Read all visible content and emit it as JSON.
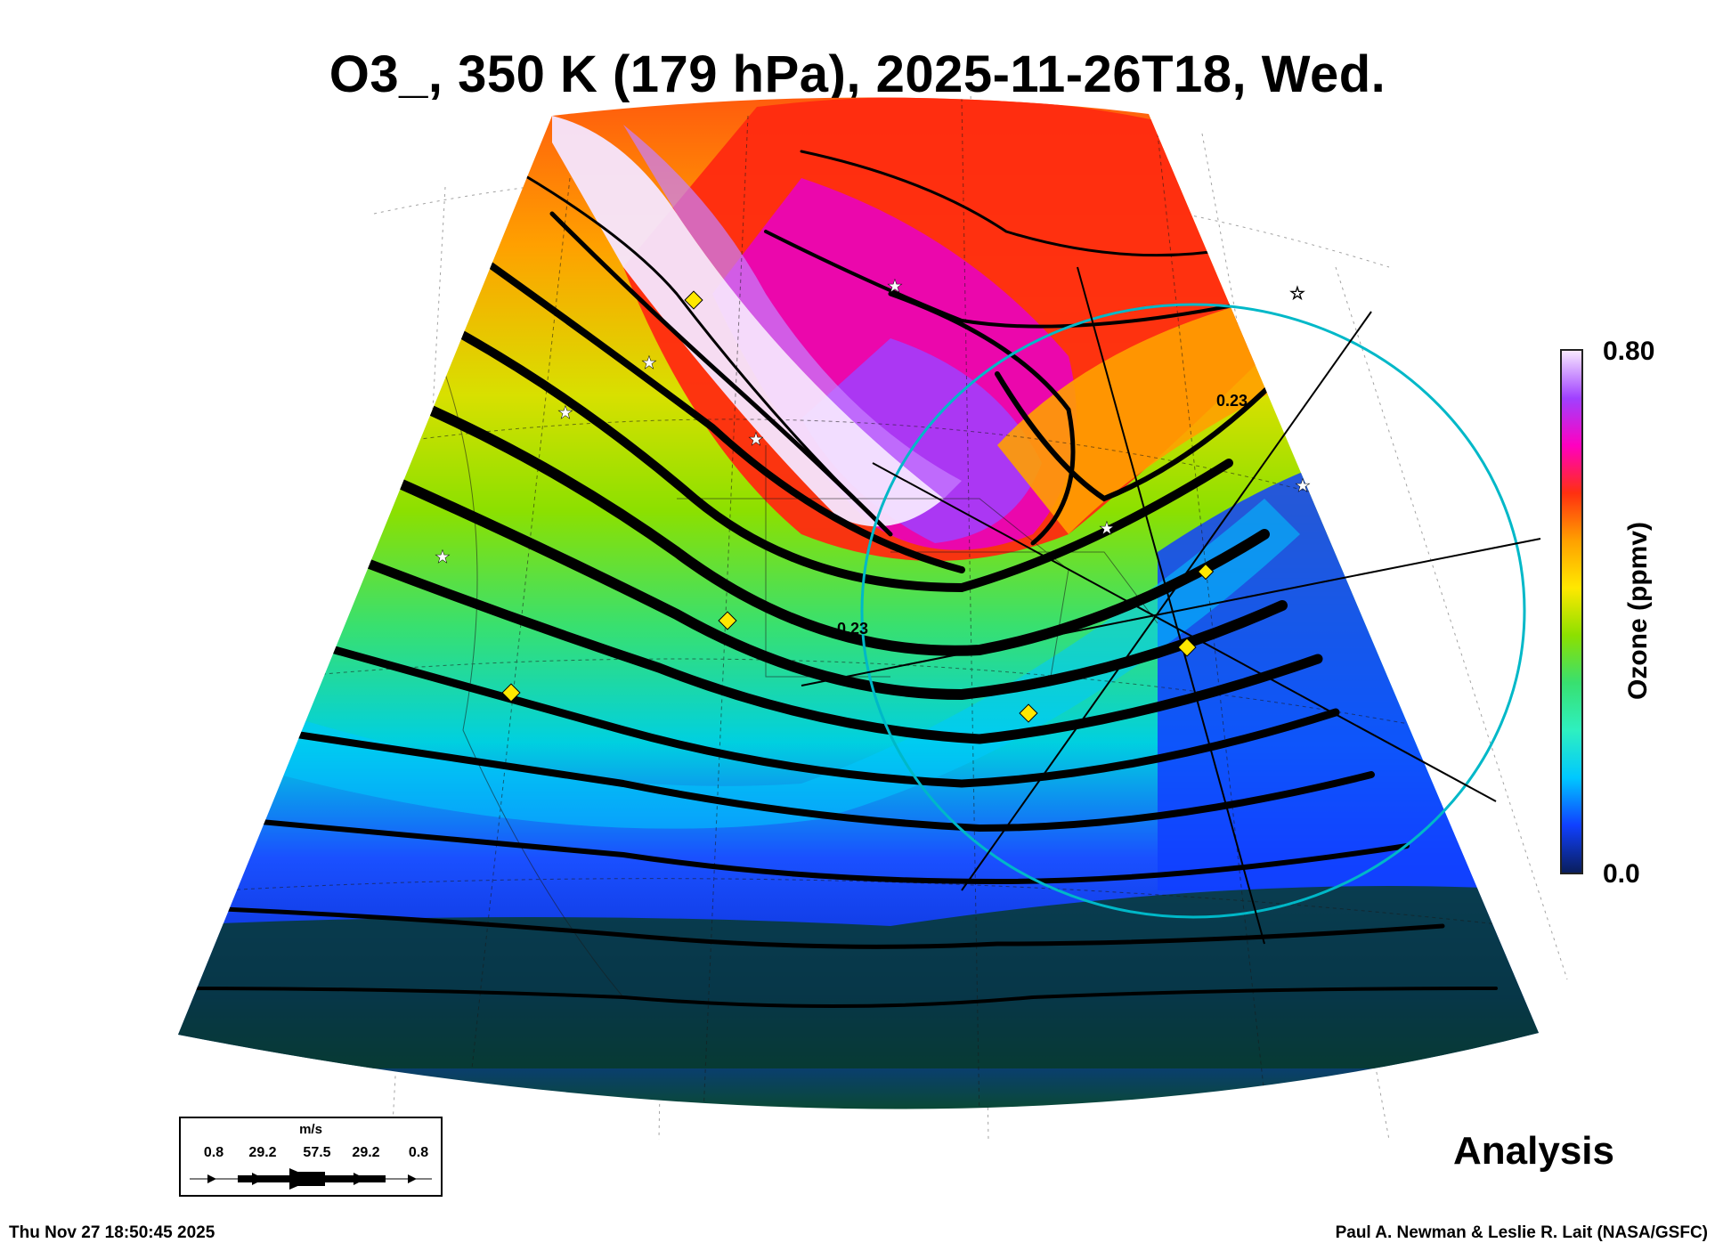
{
  "title": "O3_, 350 K (179 hPa), 2025-11-26T18, Wed.",
  "colorbar": {
    "label": "Ozone (ppmv)",
    "max_label": "0.80",
    "min_label": "0.0",
    "range": [
      0.0,
      0.8
    ],
    "colors": [
      "#0a1e5c",
      "#1040ff",
      "#00c8ff",
      "#2ef0c0",
      "#38e070",
      "#8ce000",
      "#ffe800",
      "#ffa000",
      "#ff3010",
      "#ff00c0",
      "#a040ff",
      "#f8e8ff"
    ]
  },
  "contour_label": "0.23",
  "wind_legend": {
    "unit": "m/s",
    "values": [
      "0.8",
      "29.2",
      "57.5",
      "29.2",
      "0.8"
    ]
  },
  "run_type": "Analysis",
  "timestamp": "Thu Nov 27 18:50:45 2025",
  "credit": "Paul A. Newman & Leslie R. Lait (NASA/GSFC)"
}
